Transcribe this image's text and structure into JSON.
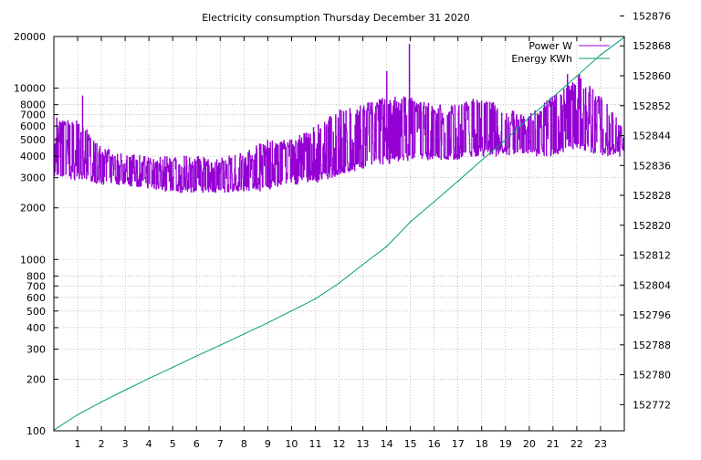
{
  "chart_data": {
    "type": "line",
    "title": "Electricity consumption Thursday December 31 2020",
    "xlabel": "",
    "ylabel": "",
    "y2label": "",
    "x_range": [
      0,
      24
    ],
    "x_ticks": [
      "1",
      "2",
      "3",
      "4",
      "5",
      "6",
      "7",
      "8",
      "9",
      "10",
      "11",
      "12",
      "13",
      "14",
      "15",
      "16",
      "17",
      "18",
      "19",
      "20",
      "21",
      "22",
      "23"
    ],
    "y_scale": "log",
    "y_range": [
      100,
      20000
    ],
    "y_ticks": [
      {
        "v": 100,
        "label": "100"
      },
      {
        "v": 200,
        "label": "200"
      },
      {
        "v": 300,
        "label": "300"
      },
      {
        "v": 400,
        "label": "400"
      },
      {
        "v": 500,
        "label": "500"
      },
      {
        "v": 600,
        "label": "600"
      },
      {
        "v": 700,
        "label": "700"
      },
      {
        "v": 800,
        "label": "800"
      },
      {
        "v": 1000,
        "label": "1000"
      },
      {
        "v": 2000,
        "label": "2000"
      },
      {
        "v": 3000,
        "label": "3000"
      },
      {
        "v": 4000,
        "label": "4000"
      },
      {
        "v": 5000,
        "label": "5000"
      },
      {
        "v": 6000,
        "label": "6000"
      },
      {
        "v": 7000,
        "label": "7000"
      },
      {
        "v": 8000,
        "label": "8000"
      },
      {
        "v": 10000,
        "label": "10000"
      },
      {
        "v": 20000,
        "label": "20000"
      }
    ],
    "y2_scale": "linear",
    "y2_range": [
      152765,
      152870.5
    ],
    "y2_ticks": [
      "152772",
      "152780",
      "152788",
      "152796",
      "152804",
      "152812",
      "152820",
      "152828",
      "152836",
      "152844",
      "152852",
      "152860",
      "152868",
      "152876"
    ],
    "grid": true,
    "legend_position": "top-right",
    "series": [
      {
        "name": "Power W",
        "axis": "y",
        "color": "#9400d3",
        "hourly_profile": [
          {
            "x": 0,
            "low": 3000,
            "high": 7000
          },
          {
            "x": 1,
            "low": 2900,
            "high": 6500
          },
          {
            "x": 2,
            "low": 2750,
            "high": 4500
          },
          {
            "x": 3,
            "low": 2700,
            "high": 4200
          },
          {
            "x": 4,
            "low": 2600,
            "high": 4000
          },
          {
            "x": 5,
            "low": 2450,
            "high": 4000
          },
          {
            "x": 6,
            "low": 2450,
            "high": 4000
          },
          {
            "x": 7,
            "low": 2450,
            "high": 4000
          },
          {
            "x": 8,
            "low": 2500,
            "high": 4200
          },
          {
            "x": 9,
            "low": 2500,
            "high": 5000
          },
          {
            "x": 10,
            "low": 2700,
            "high": 5000
          },
          {
            "x": 11,
            "low": 2800,
            "high": 6000
          },
          {
            "x": 12,
            "low": 3100,
            "high": 7500
          },
          {
            "x": 13,
            "low": 3400,
            "high": 8000
          },
          {
            "x": 14,
            "low": 3600,
            "high": 9000
          },
          {
            "x": 15,
            "low": 3800,
            "high": 9000
          },
          {
            "x": 16,
            "low": 3800,
            "high": 8000
          },
          {
            "x": 17,
            "low": 3800,
            "high": 8000
          },
          {
            "x": 18,
            "low": 4000,
            "high": 9000
          },
          {
            "x": 19,
            "low": 4000,
            "high": 7500
          },
          {
            "x": 20,
            "low": 4000,
            "high": 7000
          },
          {
            "x": 21,
            "low": 4000,
            "high": 9000
          },
          {
            "x": 22,
            "low": 4500,
            "high": 12000
          },
          {
            "x": 23,
            "low": 4000,
            "high": 9000
          },
          {
            "x": 24,
            "low": 4000,
            "high": 5500
          }
        ],
        "peaks": [
          {
            "x": 1.2,
            "y": 9000
          },
          {
            "x": 14.0,
            "y": 12500
          },
          {
            "x": 14.95,
            "y": 18000
          },
          {
            "x": 21.6,
            "y": 12000
          },
          {
            "x": 22.1,
            "y": 12000
          }
        ]
      },
      {
        "name": "Energy KWh",
        "axis": "y2",
        "color": "#009e73",
        "points": [
          {
            "x": 0,
            "y": 152765.2
          },
          {
            "x": 1,
            "y": 152769.3
          },
          {
            "x": 2,
            "y": 152772.7
          },
          {
            "x": 3,
            "y": 152775.9
          },
          {
            "x": 4,
            "y": 152779.0
          },
          {
            "x": 5,
            "y": 152782.0
          },
          {
            "x": 6,
            "y": 152785.0
          },
          {
            "x": 7,
            "y": 152787.9
          },
          {
            "x": 8,
            "y": 152790.9
          },
          {
            "x": 9,
            "y": 152793.9
          },
          {
            "x": 10,
            "y": 152797.1
          },
          {
            "x": 11,
            "y": 152800.3
          },
          {
            "x": 12,
            "y": 152804.5
          },
          {
            "x": 13,
            "y": 152809.5
          },
          {
            "x": 14,
            "y": 152814.3
          },
          {
            "x": 15,
            "y": 152820.9
          },
          {
            "x": 16,
            "y": 152826.3
          },
          {
            "x": 17,
            "y": 152831.8
          },
          {
            "x": 18,
            "y": 152837.4
          },
          {
            "x": 19,
            "y": 152842.8
          },
          {
            "x": 20,
            "y": 152848.8
          },
          {
            "x": 21,
            "y": 152854.3
          },
          {
            "x": 22,
            "y": 152859.9
          },
          {
            "x": 23,
            "y": 152865.6
          },
          {
            "x": 24,
            "y": 152870.3
          }
        ]
      }
    ]
  }
}
